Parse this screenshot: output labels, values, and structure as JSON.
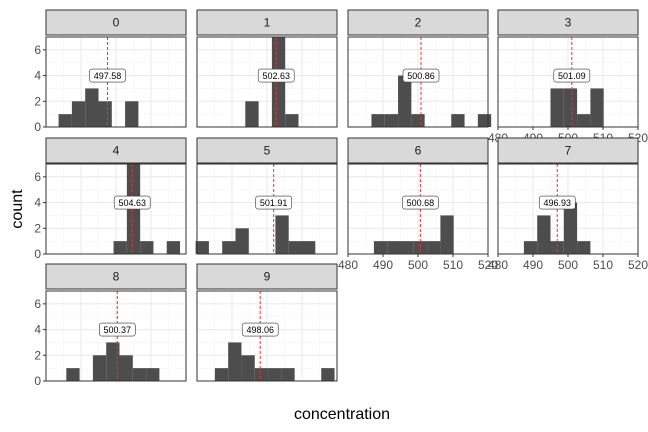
{
  "chart_data": {
    "type": "histogram-facets",
    "xlabel": "concentration",
    "ylabel": "count",
    "xlim": [
      480,
      520
    ],
    "ylim": [
      0,
      7
    ],
    "x_ticks": [
      480,
      490,
      500,
      510,
      520
    ],
    "y_ticks": [
      0,
      2,
      4,
      6
    ],
    "bin_width": 3.8,
    "panels": [
      {
        "facet": "0",
        "mean": 497.58,
        "mean_label": "497.58",
        "bins": [
          [
            485.5,
            1
          ],
          [
            489.3,
            2
          ],
          [
            493.1,
            3
          ],
          [
            496.9,
            2
          ],
          [
            504.5,
            2
          ]
        ]
      },
      {
        "facet": "1",
        "mean": 502.63,
        "mean_label": "502.63",
        "bins": [
          [
            495.7,
            2
          ],
          [
            503.3,
            7
          ],
          [
            507.1,
            1
          ]
        ]
      },
      {
        "facet": "2",
        "mean": 500.86,
        "mean_label": "500.86",
        "bins": [
          [
            488.6,
            1
          ],
          [
            492.4,
            1
          ],
          [
            496.2,
            4
          ],
          [
            500.0,
            1
          ],
          [
            511.4,
            1
          ],
          [
            519.0,
            1
          ]
        ]
      },
      {
        "facet": "3",
        "mean": 501.09,
        "mean_label": "501.09",
        "bins": [
          [
            496.9,
            3
          ],
          [
            500.7,
            3
          ],
          [
            504.5,
            1
          ],
          [
            508.3,
            3
          ]
        ]
      },
      {
        "facet": "4",
        "mean": 504.63,
        "mean_label": "504.63",
        "bins": [
          [
            501.2,
            1
          ],
          [
            505.0,
            7
          ],
          [
            508.8,
            1
          ],
          [
            516.4,
            1
          ]
        ]
      },
      {
        "facet": "5",
        "mean": 501.91,
        "mean_label": "501.91",
        "bins": [
          [
            481.5,
            1
          ],
          [
            489.1,
            1
          ],
          [
            492.9,
            2
          ],
          [
            504.3,
            3
          ],
          [
            508.1,
            1
          ],
          [
            511.9,
            1
          ]
        ]
      },
      {
        "facet": "6",
        "mean": 500.68,
        "mean_label": "500.68",
        "bins": [
          [
            489.3,
            1
          ],
          [
            493.1,
            1
          ],
          [
            496.9,
            1
          ],
          [
            500.7,
            1
          ],
          [
            504.5,
            1
          ],
          [
            508.3,
            3
          ]
        ]
      },
      {
        "facet": "7",
        "mean": 496.93,
        "mean_label": "496.93",
        "bins": [
          [
            489.3,
            1
          ],
          [
            493.1,
            3
          ],
          [
            496.9,
            1
          ],
          [
            500.7,
            4
          ],
          [
            504.5,
            1
          ]
        ]
      },
      {
        "facet": "8",
        "mean": 500.37,
        "mean_label": "500.37",
        "bins": [
          [
            487.7,
            1
          ],
          [
            495.3,
            2
          ],
          [
            499.1,
            3
          ],
          [
            502.9,
            2
          ],
          [
            506.7,
            1
          ],
          [
            510.5,
            1
          ]
        ]
      },
      {
        "facet": "9",
        "mean": 498.06,
        "mean_label": "498.06",
        "bins": [
          [
            487.0,
            1
          ],
          [
            490.8,
            3
          ],
          [
            494.6,
            2
          ],
          [
            498.4,
            1
          ],
          [
            502.2,
            1
          ],
          [
            506.0,
            1
          ],
          [
            517.4,
            1
          ]
        ]
      }
    ]
  },
  "colors": {
    "bar": "#4d4d4d",
    "mean_line": "#ff2a2a",
    "strip_fill": "#d9d9d9",
    "strip_border": "#333333",
    "panel_border": "#333333",
    "grid_major": "#ebebeb",
    "grid_minor": "#f5f5f5"
  }
}
